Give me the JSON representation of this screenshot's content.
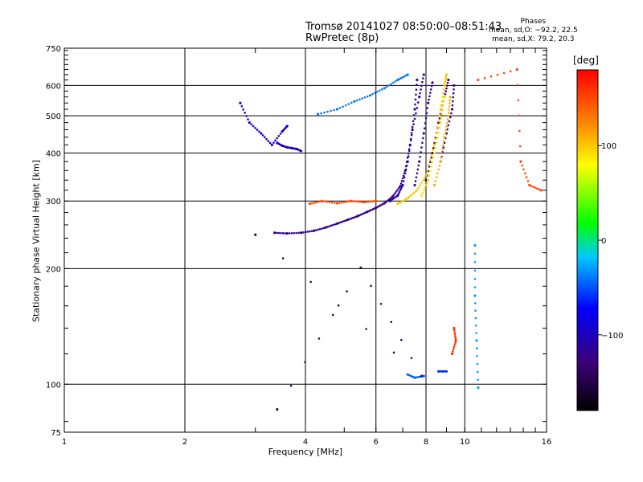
{
  "title_line1": "Tromsø 20141027 08:50:00–08:51:43",
  "title_line2": "RwPretec (8p)",
  "phase_box": {
    "heading": "Phases",
    "line_O": "mean, sd,O: −92.2, 22.5",
    "line_X": "mean, sd,X: 79.2, 20.3"
  },
  "colorbar": {
    "unit_label": "[deg]",
    "ticks": [
      {
        "value": 100,
        "label": "100"
      },
      {
        "value": 0,
        "label": "0"
      },
      {
        "value": -100,
        "label": "−100"
      }
    ],
    "range": [
      -180,
      180
    ]
  },
  "chart_data": {
    "type": "scatter",
    "title": "Tromsø 20141027 08:50:00–08:51:43",
    "subtitle": "RwPretec (8p)",
    "xlabel": "Frequency [MHz]",
    "ylabel": "Stationary phase Virtual Height [km]",
    "x_scale": "log",
    "y_scale": "log",
    "xlim": [
      1,
      16
    ],
    "ylim": [
      75,
      750
    ],
    "x_ticks": [
      1,
      2,
      4,
      6,
      8,
      10,
      16
    ],
    "y_ticks": [
      75,
      100,
      200,
      300,
      400,
      500,
      600,
      750
    ],
    "grid": true,
    "color_encoding": "phase (deg)",
    "series": [
      {
        "points": [
          [
            3.35,
            248
          ],
          [
            3.6,
            247
          ],
          [
            3.9,
            248
          ],
          [
            4.2,
            251
          ],
          [
            4.5,
            256
          ],
          [
            4.8,
            262
          ],
          [
            5.1,
            268
          ],
          [
            5.4,
            274
          ],
          [
            5.7,
            281
          ],
          [
            6.0,
            288
          ],
          [
            6.3,
            296
          ],
          [
            6.6,
            308
          ],
          [
            6.9,
            328
          ],
          [
            7.1,
            360
          ],
          [
            7.3,
            420
          ],
          [
            7.5,
            520
          ],
          [
            7.6,
            620
          ]
        ],
        "phase": -120
      },
      {
        "points": [
          [
            6.5,
            300
          ],
          [
            6.8,
            310
          ],
          [
            7.0,
            330
          ],
          [
            7.2,
            380
          ],
          [
            7.4,
            460
          ],
          [
            7.7,
            560
          ],
          [
            7.9,
            640
          ]
        ],
        "phase": -110
      },
      {
        "points": [
          [
            7.5,
            330
          ],
          [
            7.7,
            380
          ],
          [
            7.9,
            450
          ],
          [
            8.1,
            540
          ],
          [
            8.3,
            610
          ]
        ],
        "phase": -125
      },
      {
        "points": [
          [
            8.0,
            340
          ],
          [
            8.3,
            400
          ],
          [
            8.6,
            480
          ],
          [
            8.9,
            560
          ],
          [
            9.1,
            620
          ]
        ],
        "phase": -130
      },
      {
        "points": [
          [
            8.7,
            380
          ],
          [
            9.0,
            450
          ],
          [
            9.3,
            520
          ],
          [
            9.4,
            600
          ]
        ],
        "phase": -120
      },
      {
        "points": [
          [
            6.8,
            295
          ],
          [
            7.2,
            305
          ],
          [
            7.6,
            320
          ],
          [
            8.0,
            350
          ],
          [
            8.4,
            420
          ],
          [
            8.7,
            520
          ],
          [
            8.9,
            600
          ],
          [
            9.0,
            640
          ]
        ],
        "phase": 100
      },
      {
        "points": [
          [
            7.8,
            310
          ],
          [
            8.1,
            340
          ],
          [
            8.4,
            400
          ],
          [
            8.7,
            480
          ],
          [
            8.9,
            560
          ]
        ],
        "phase": 90
      },
      {
        "points": [
          [
            8.4,
            330
          ],
          [
            8.7,
            380
          ],
          [
            8.9,
            440
          ],
          [
            9.1,
            500
          ],
          [
            9.2,
            560
          ]
        ],
        "phase": 110
      },
      {
        "points": [
          [
            4.3,
            505
          ],
          [
            4.8,
            520
          ],
          [
            5.3,
            545
          ],
          [
            5.8,
            565
          ],
          [
            6.3,
            590
          ],
          [
            6.8,
            620
          ],
          [
            7.2,
            640
          ]
        ],
        "phase": -40
      },
      {
        "points": [
          [
            3.4,
            425
          ],
          [
            3.5,
            418
          ],
          [
            3.6,
            414
          ],
          [
            3.7,
            412
          ],
          [
            3.8,
            410
          ],
          [
            3.9,
            405
          ]
        ],
        "phase": -100
      },
      {
        "points": [
          [
            4.1,
            295
          ],
          [
            4.4,
            300
          ],
          [
            4.8,
            296
          ],
          [
            5.2,
            300
          ],
          [
            5.6,
            298
          ],
          [
            6.0,
            300
          ]
        ],
        "phase": 150
      },
      {
        "points": [
          [
            2.75,
            540
          ],
          [
            2.9,
            480
          ],
          [
            3.1,
            450
          ],
          [
            3.3,
            420
          ],
          [
            3.5,
            455
          ],
          [
            3.6,
            470
          ]
        ],
        "phase": -90
      },
      {
        "points": [
          [
            8.6,
            108
          ],
          [
            8.8,
            108
          ],
          [
            9.0,
            108
          ]
        ],
        "phase": -60
      },
      {
        "points": [
          [
            7.2,
            106
          ],
          [
            7.5,
            104
          ],
          [
            7.9,
            105
          ]
        ],
        "phase": -45
      },
      {
        "points": [
          [
            9.4,
            140
          ],
          [
            9.5,
            130
          ],
          [
            9.3,
            120
          ]
        ],
        "phase": 160
      },
      {
        "points": [
          [
            10.8,
            620
          ],
          [
            13.5,
            660
          ],
          [
            13.8,
            380
          ],
          [
            14.5,
            330
          ],
          [
            15.5,
            320
          ]
        ],
        "phase": 150
      },
      {
        "points": [
          [
            10.6,
            230
          ],
          [
            10.6,
            170
          ],
          [
            10.7,
            130
          ],
          [
            10.8,
            98
          ]
        ],
        "phase": -30
      },
      {
        "points": [
          [
            3.4,
            86
          ],
          [
            5.5,
            201
          ],
          [
            7.8,
            105
          ],
          [
            3.0,
            245
          ]
        ],
        "phase": -140
      }
    ]
  }
}
